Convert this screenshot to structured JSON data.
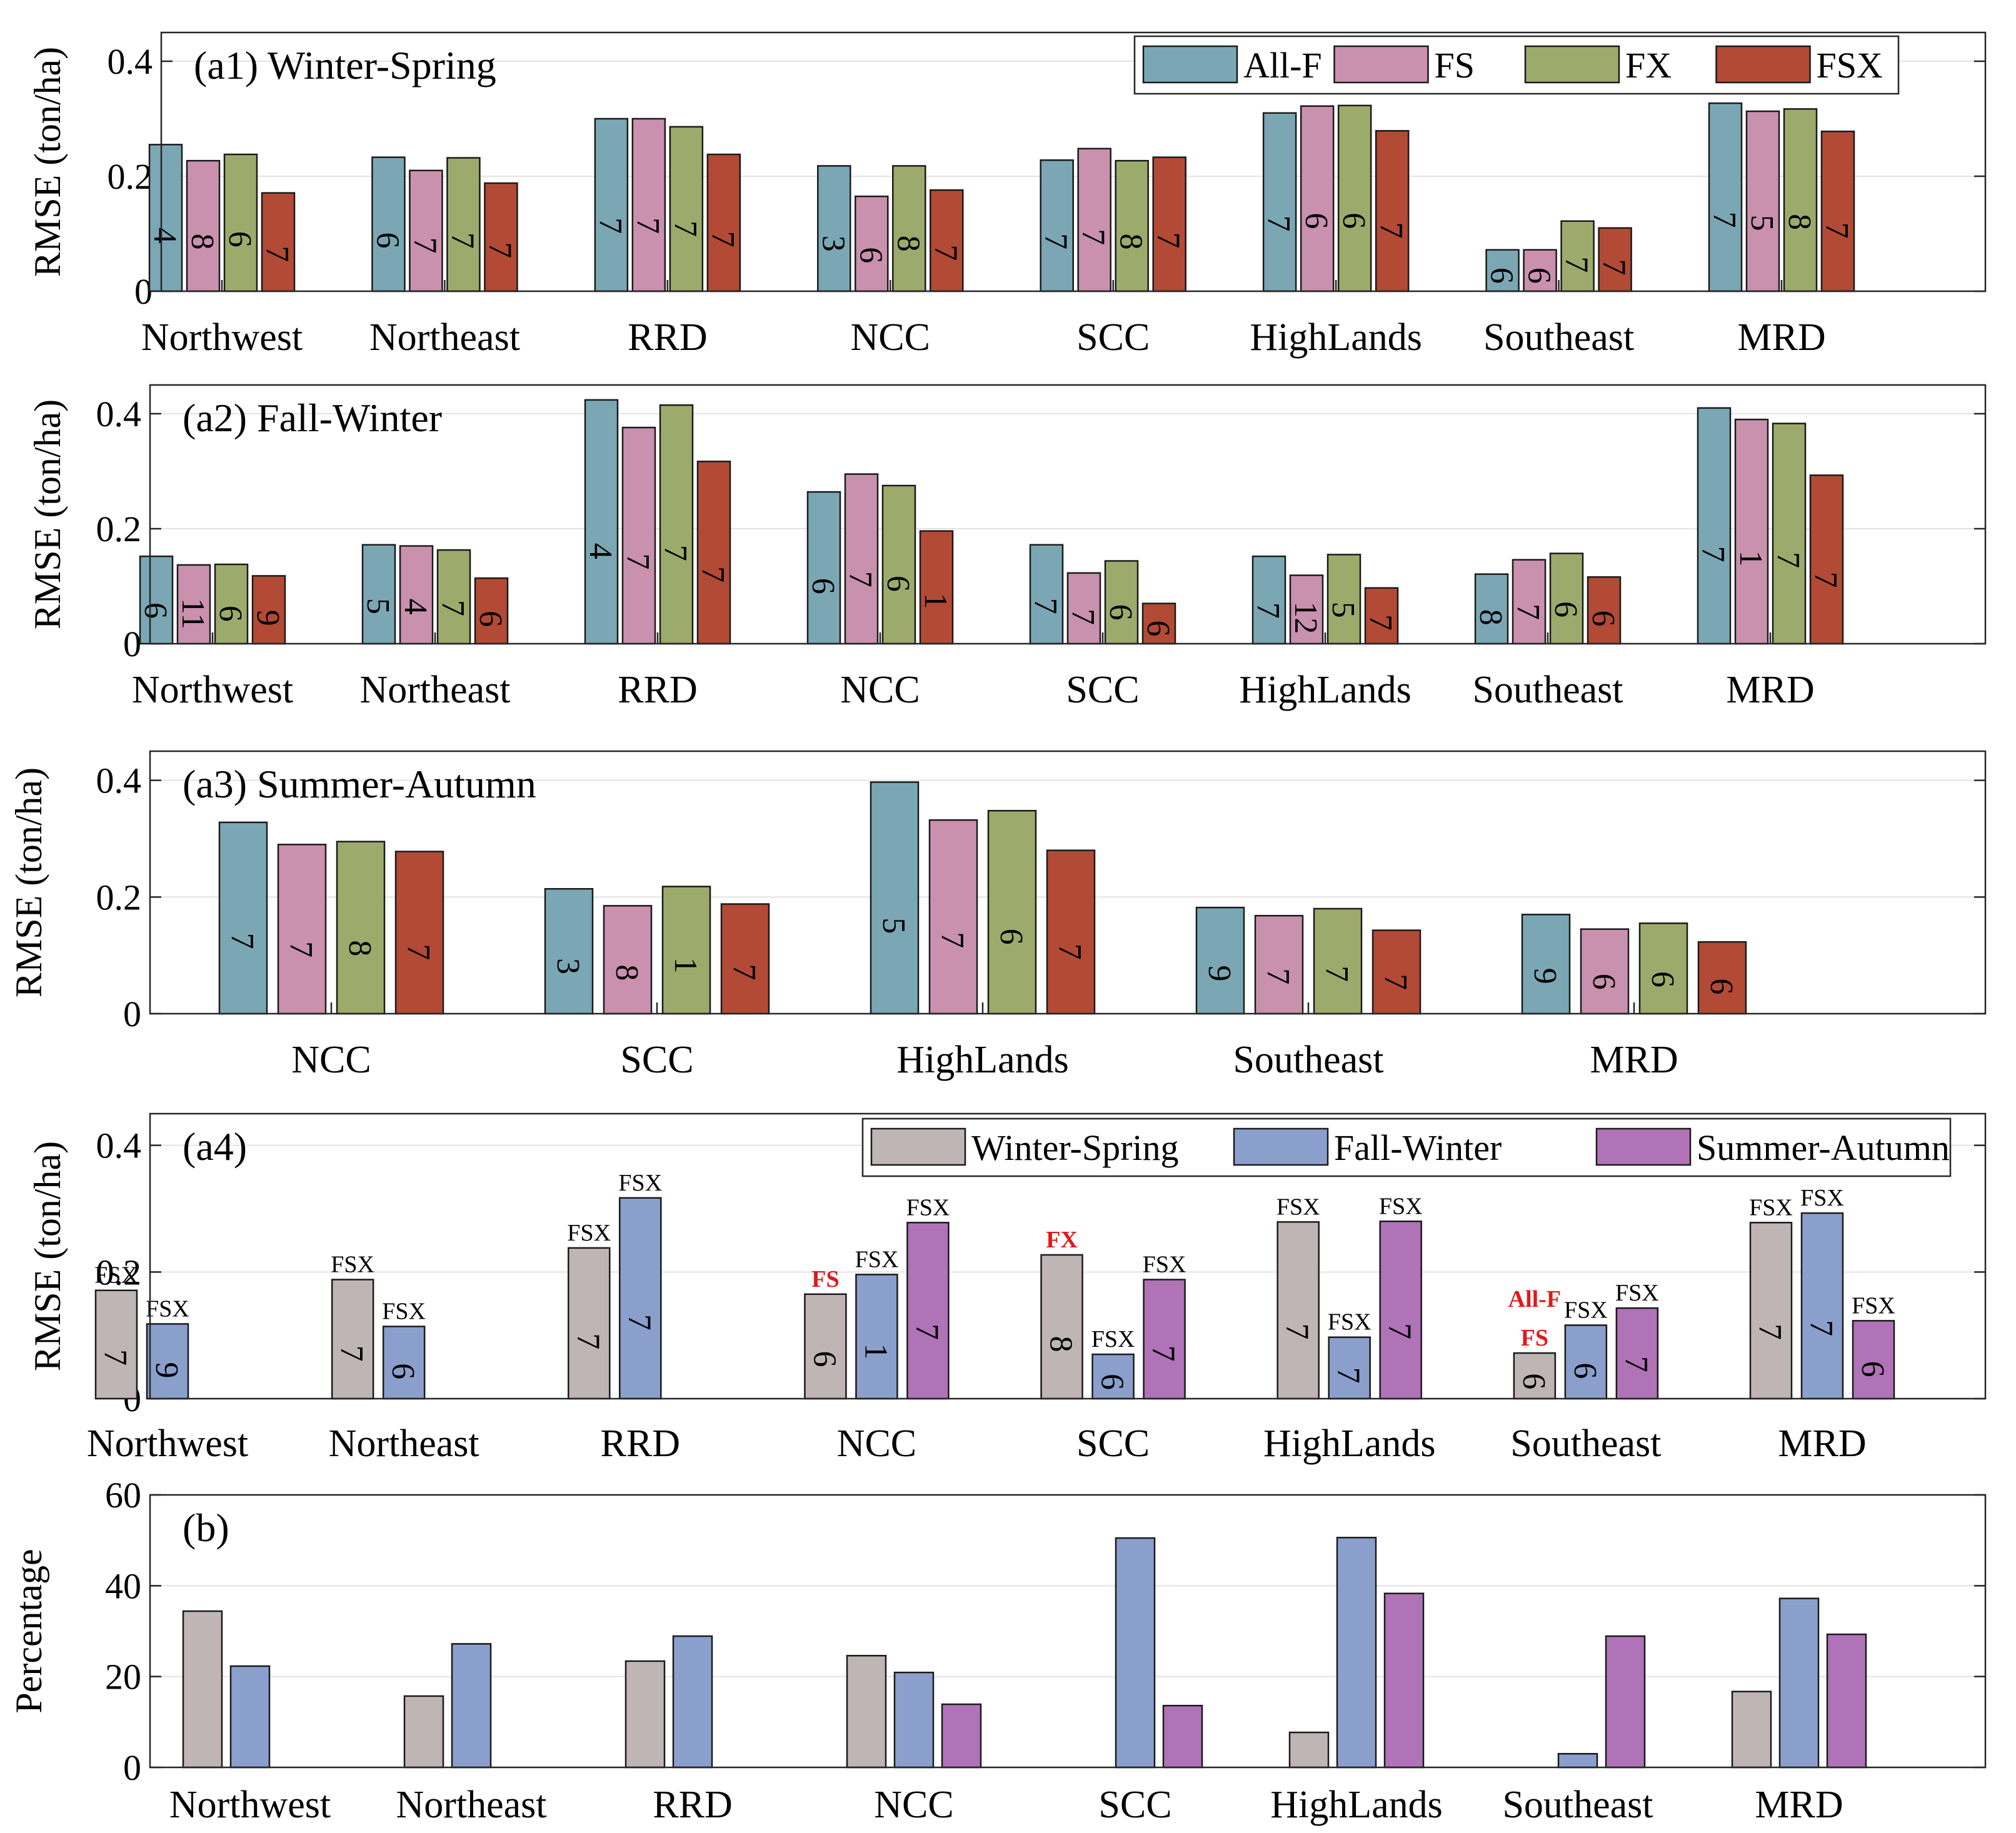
{
  "chart_data": [
    {
      "id": "a1",
      "type": "bar",
      "title": "(a1) Winter-Spring",
      "ylabel": "RMSE (ton/ha)",
      "ylim": [
        0,
        0.45
      ],
      "yticks": [
        0,
        0.2,
        0.4
      ],
      "ytick_labels": [
        "0",
        "0.2",
        "0.4"
      ],
      "categories": [
        "Northwest",
        "Northeast",
        "RRD",
        "NCC",
        "SCC",
        "HighLands",
        "Southeast",
        "MRD"
      ],
      "legend": "top-right",
      "series": [
        {
          "name": "All-F",
          "color": "#7ba7b4",
          "values": [
            0.255,
            0.233,
            0.3,
            0.218,
            0.228,
            0.31,
            0.072,
            0.327
          ],
          "labels": [
            "4",
            "6",
            "7",
            "3",
            "7",
            "7",
            "6",
            "7"
          ]
        },
        {
          "name": "FS",
          "color": "#c991ae",
          "values": [
            0.227,
            0.21,
            0.3,
            0.165,
            0.248,
            0.322,
            0.072,
            0.313
          ],
          "labels": [
            "8",
            "7",
            "7",
            "6",
            "7",
            "6",
            "6",
            "5"
          ]
        },
        {
          "name": "FX",
          "color": "#9cab6b",
          "values": [
            0.238,
            0.232,
            0.286,
            0.218,
            0.227,
            0.323,
            0.122,
            0.317
          ],
          "labels": [
            "6",
            "7",
            "7",
            "8",
            "8",
            "6",
            "7",
            "8"
          ]
        },
        {
          "name": "FSX",
          "color": "#b24a35",
          "values": [
            0.171,
            0.188,
            0.238,
            0.176,
            0.233,
            0.279,
            0.11,
            0.278
          ],
          "labels": [
            "7",
            "7",
            "7",
            "7",
            "7",
            "7",
            "7",
            "7"
          ]
        }
      ]
    },
    {
      "id": "a2",
      "type": "bar",
      "title": "(a2) Fall-Winter",
      "ylabel": "RMSE (ton/ha)",
      "ylim": [
        0,
        0.45
      ],
      "yticks": [
        0,
        0.2,
        0.4
      ],
      "ytick_labels": [
        "0",
        "0.2",
        "0.4"
      ],
      "categories": [
        "Northwest",
        "Northeast",
        "RRD",
        "NCC",
        "SCC",
        "HighLands",
        "Southeast",
        "MRD"
      ],
      "series": [
        {
          "name": "All-F",
          "color": "#7ba7b4",
          "values": [
            0.152,
            0.172,
            0.424,
            0.264,
            0.172,
            0.152,
            0.121,
            0.41
          ],
          "labels": [
            "6",
            "5",
            "4",
            "6",
            "7",
            "7",
            "8",
            "7"
          ]
        },
        {
          "name": "FS",
          "color": "#c991ae",
          "values": [
            0.137,
            0.17,
            0.376,
            0.295,
            0.123,
            0.119,
            0.146,
            0.39
          ],
          "labels": [
            "11",
            "4",
            "7",
            "7",
            "7",
            "12",
            "7",
            "1"
          ]
        },
        {
          "name": "FX",
          "color": "#9cab6b",
          "values": [
            0.138,
            0.163,
            0.415,
            0.275,
            0.144,
            0.155,
            0.157,
            0.383
          ],
          "labels": [
            "6",
            "7",
            "7",
            "6",
            "6",
            "5",
            "6",
            "7"
          ]
        },
        {
          "name": "FSX",
          "color": "#b24a35",
          "values": [
            0.118,
            0.114,
            0.317,
            0.196,
            0.07,
            0.097,
            0.116,
            0.293
          ],
          "labels": [
            "9",
            "6",
            "7",
            "1",
            "6",
            "7",
            "6",
            "7"
          ]
        }
      ]
    },
    {
      "id": "a3",
      "type": "bar",
      "title": "(a3) Summer-Autumn",
      "ylabel": "RMSE (ton/ha)",
      "ylim": [
        0,
        0.45
      ],
      "yticks": [
        0,
        0.2,
        0.4
      ],
      "ytick_labels": [
        "0",
        "0.2",
        "0.4"
      ],
      "categories": [
        "NCC",
        "SCC",
        "HighLands",
        "Southeast",
        "MRD"
      ],
      "series": [
        {
          "name": "All-F",
          "color": "#7ba7b4",
          "values": [
            0.328,
            0.214,
            0.397,
            0.182,
            0.17
          ],
          "labels": [
            "7",
            "3",
            "5",
            "9",
            "9"
          ]
        },
        {
          "name": "FS",
          "color": "#c991ae",
          "values": [
            0.29,
            0.185,
            0.332,
            0.168,
            0.145
          ],
          "labels": [
            "7",
            "8",
            "7",
            "7",
            "6"
          ]
        },
        {
          "name": "FX",
          "color": "#9cab6b",
          "values": [
            0.295,
            0.218,
            0.348,
            0.18,
            0.155
          ],
          "labels": [
            "8",
            "1",
            "6",
            "7",
            "6"
          ]
        },
        {
          "name": "FSX",
          "color": "#b24a35",
          "values": [
            0.278,
            0.188,
            0.28,
            0.143,
            0.123
          ],
          "labels": [
            "7",
            "7",
            "7",
            "7",
            "6"
          ]
        }
      ]
    },
    {
      "id": "a4",
      "type": "bar",
      "title": "(a4)",
      "ylabel": "RMSE (ton/ha)",
      "ylim": [
        0,
        0.45
      ],
      "yticks": [
        0,
        0.2,
        0.4
      ],
      "ytick_labels": [
        "0",
        "0.2",
        "0.4"
      ],
      "categories": [
        "Northwest",
        "Northeast",
        "RRD",
        "NCC",
        "SCC",
        "HighLands",
        "Southeast",
        "MRD"
      ],
      "legend": "top-right",
      "series": [
        {
          "name": "Winter-Spring",
          "color": "#bfb5b5",
          "values": [
            0.171,
            0.188,
            0.238,
            0.165,
            0.227,
            0.279,
            0.072,
            0.278
          ],
          "labels": [
            "7",
            "7",
            "7",
            "6",
            "8",
            "7",
            "6",
            "7"
          ],
          "top_labels": [
            "FSX",
            "FSX",
            "FSX",
            "FS",
            "FX",
            "FSX",
            "All-F FS",
            "FSX"
          ],
          "top_red": [
            false,
            false,
            false,
            true,
            true,
            false,
            true,
            false
          ]
        },
        {
          "name": "Fall-Winter",
          "color": "#8a9fcc",
          "values": [
            0.118,
            0.114,
            0.317,
            0.196,
            0.07,
            0.097,
            0.116,
            0.293
          ],
          "labels": [
            "9",
            "6",
            "7",
            "1",
            "6",
            "7",
            "6",
            "7"
          ],
          "top_labels": [
            "FSX",
            "FSX",
            "FSX",
            "FSX",
            "FSX",
            "FSX",
            "FSX",
            "FSX"
          ],
          "top_red": [
            false,
            false,
            false,
            false,
            false,
            false,
            false,
            false
          ]
        },
        {
          "name": "Summer-Autumn",
          "color": "#b073b7",
          "values": [
            null,
            null,
            null,
            0.278,
            0.188,
            0.28,
            0.143,
            0.123
          ],
          "labels": [
            "",
            "",
            "",
            "7",
            "7",
            "7",
            "7",
            "6"
          ],
          "top_labels": [
            "",
            "",
            "",
            "FSX",
            "FSX",
            "FSX",
            "FSX",
            "FSX"
          ],
          "top_red": [
            false,
            false,
            false,
            false,
            false,
            false,
            false,
            false
          ]
        }
      ]
    },
    {
      "id": "b",
      "type": "bar",
      "title": "(b)",
      "ylabel": "Percentage",
      "ylim": [
        0,
        60
      ],
      "yticks": [
        0,
        20,
        40,
        60
      ],
      "ytick_labels": [
        "0",
        "20",
        "40",
        "60"
      ],
      "categories": [
        "Northwest",
        "Northeast",
        "RRD",
        "NCC",
        "SCC",
        "HighLands",
        "Southeast",
        "MRD"
      ],
      "series": [
        {
          "name": "Winter-Spring",
          "color": "#bfb5b5",
          "values": [
            34.4,
            15.7,
            23.4,
            24.6,
            null,
            7.7,
            null,
            16.7
          ]
        },
        {
          "name": "Fall-Winter",
          "color": "#8a9fcc",
          "values": [
            22.3,
            27.2,
            28.9,
            20.9,
            50.5,
            50.6,
            3.0,
            37.2
          ]
        },
        {
          "name": "Summer-Autumn",
          "color": "#b073b7",
          "values": [
            null,
            null,
            null,
            13.9,
            13.6,
            38.3,
            28.9,
            29.3
          ]
        }
      ]
    }
  ]
}
